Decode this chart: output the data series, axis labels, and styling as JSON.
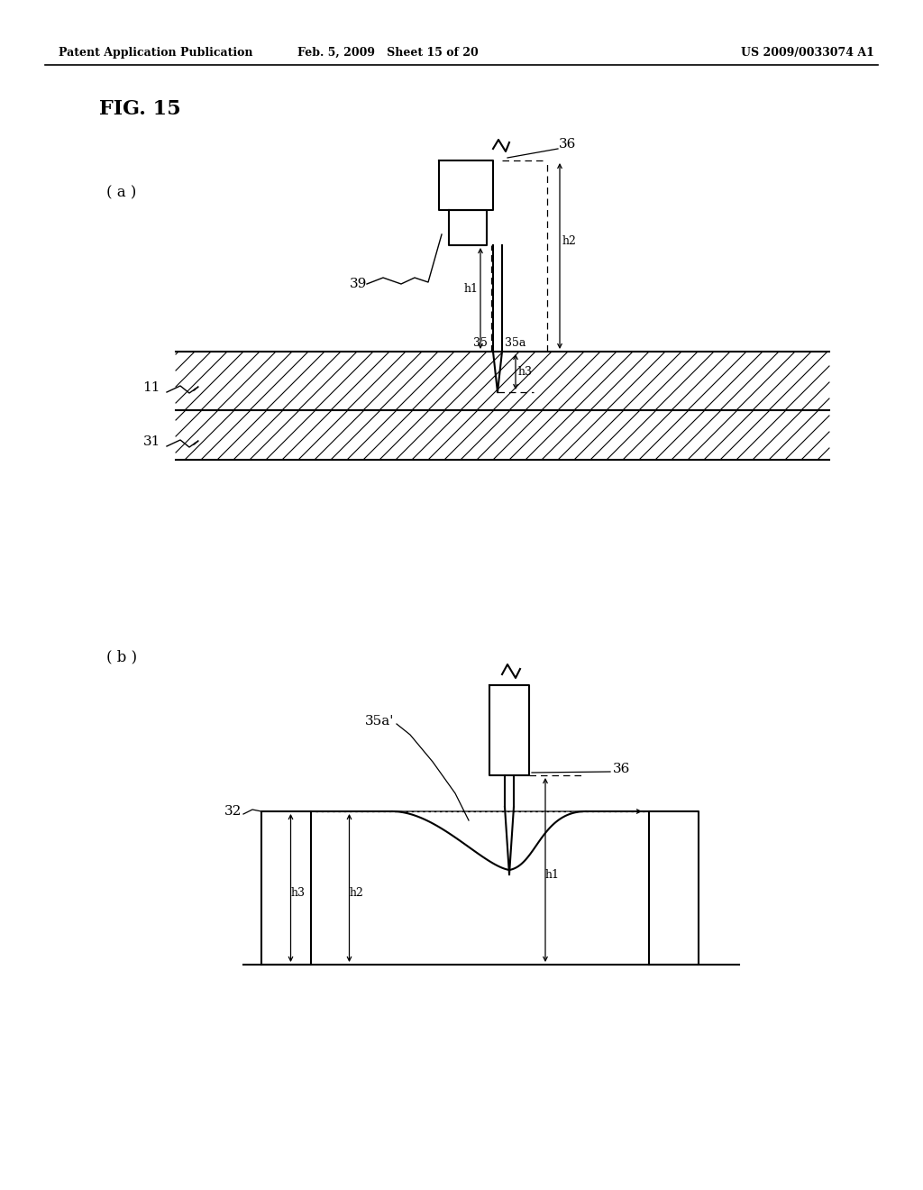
{
  "bg_color": "#ffffff",
  "line_color": "#000000",
  "header_left": "Patent Application Publication",
  "header_mid": "Feb. 5, 2009   Sheet 15 of 20",
  "header_right": "US 2009/0033074 A1",
  "fig_title": "FIG. 15",
  "label_a": "( a )",
  "label_b": "( b )"
}
